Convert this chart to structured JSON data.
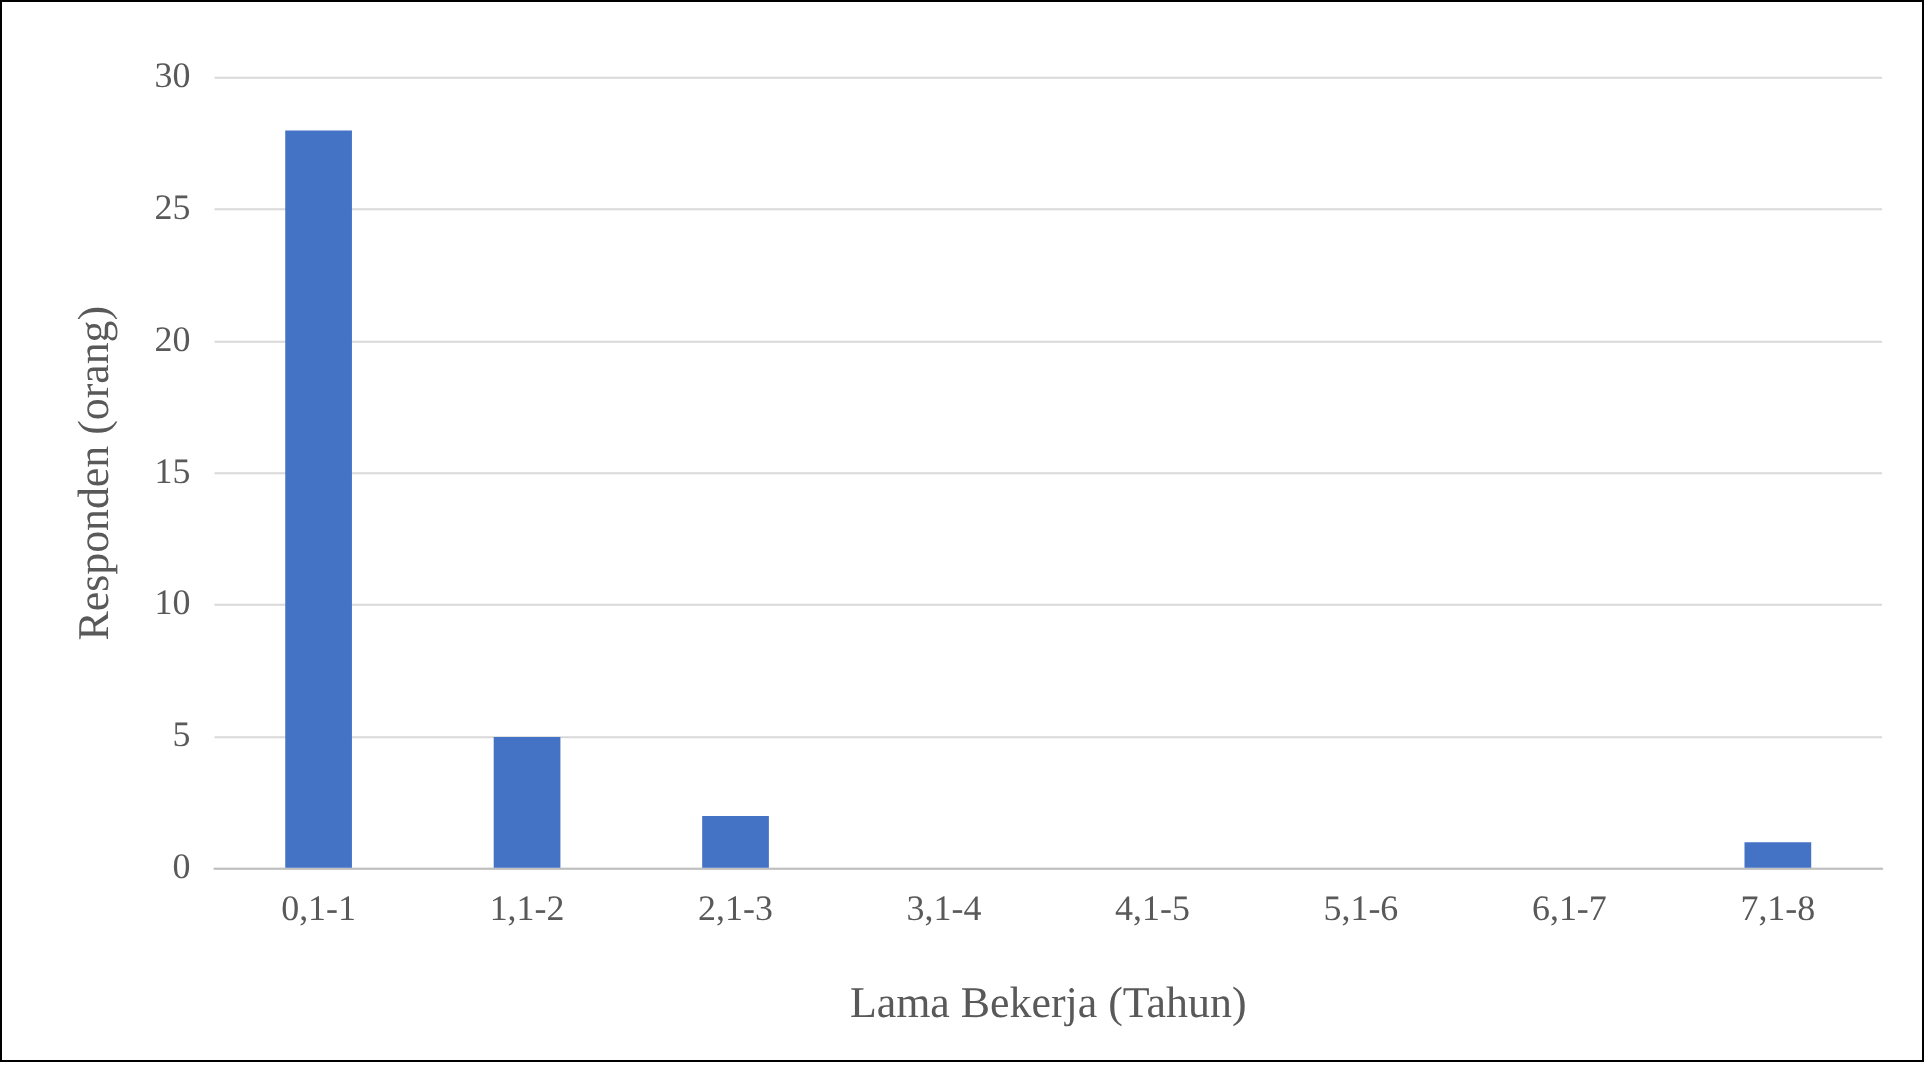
{
  "chart_data": {
    "type": "bar",
    "xlabel": "Lama Bekerja (Tahun)",
    "ylabel": "Responden (orang)",
    "categories": [
      "0,1-1",
      "1,1-2",
      "2,1-3",
      "3,1-4",
      "4,1-5",
      "5,1-6",
      "6,1-7",
      "7,1-8"
    ],
    "values": [
      28,
      5,
      2,
      0,
      0,
      0,
      0,
      1
    ],
    "color": "#4472c4",
    "ylim": [
      0,
      30
    ],
    "yticks": [
      0,
      5,
      10,
      15,
      20,
      25,
      30
    ],
    "grid": "y",
    "legend": false
  }
}
